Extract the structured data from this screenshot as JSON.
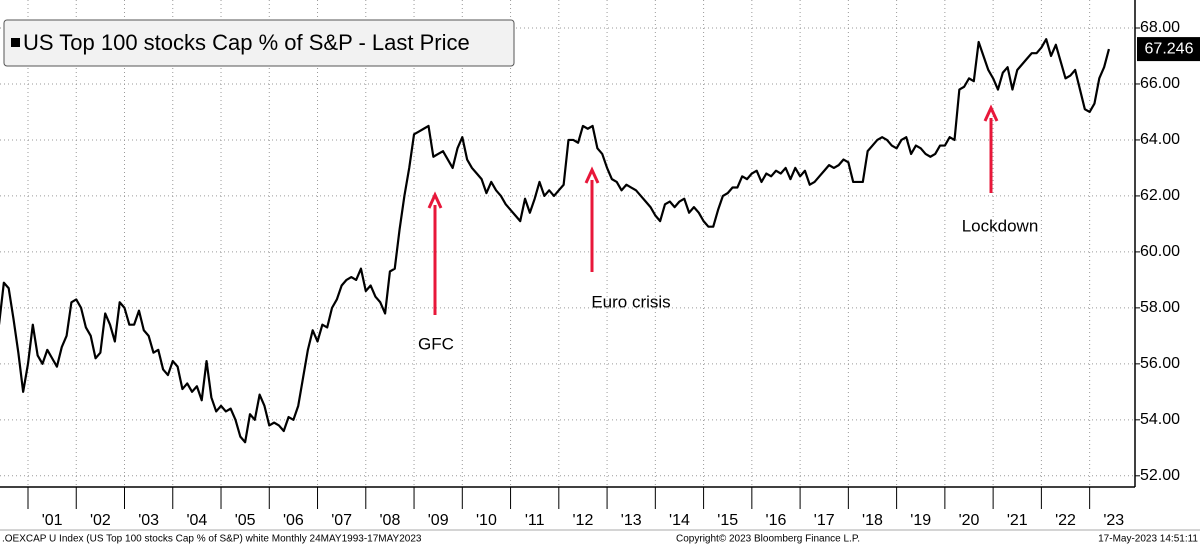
{
  "chart_data": {
    "type": "line",
    "series": [
      {
        "name": "US Top 100 stocks Cap % of S&P - Last Price",
        "color": "#000000",
        "values": [
          57.4,
          58.9,
          58.7,
          57.6,
          56.4,
          55.0,
          56.0,
          57.4,
          56.3,
          56.0,
          56.5,
          56.2,
          55.9,
          56.6,
          57.0,
          58.2,
          58.3,
          58.0,
          57.3,
          57.0,
          56.2,
          56.4,
          57.8,
          57.4,
          56.8,
          58.2,
          58.0,
          57.4,
          57.4,
          57.9,
          57.2,
          57.0,
          56.4,
          56.5,
          55.8,
          55.6,
          56.1,
          55.9,
          55.1,
          55.3,
          55.0,
          55.2,
          54.7,
          56.1,
          54.8,
          54.3,
          54.5,
          54.3,
          54.4,
          54.0,
          53.4,
          53.2,
          54.2,
          54.0,
          54.9,
          54.5,
          53.8,
          53.9,
          53.8,
          53.6,
          54.1,
          54.0,
          54.5,
          55.5,
          56.5,
          57.2,
          56.8,
          57.4,
          57.3,
          58.0,
          58.3,
          58.8,
          59.0,
          59.1,
          59.0,
          59.4,
          58.6,
          58.8,
          58.4,
          58.2,
          57.8,
          59.3,
          59.4,
          60.8,
          62.0,
          63.0,
          64.2,
          64.3,
          64.4,
          64.5,
          63.4,
          63.5,
          63.6,
          63.3,
          63.0,
          63.7,
          64.1,
          63.3,
          63.0,
          62.8,
          62.6,
          62.1,
          62.5,
          62.2,
          62.0,
          61.7,
          61.5,
          61.3,
          61.1,
          61.9,
          61.4,
          61.9,
          62.5,
          62.0,
          62.2,
          62.0,
          62.2,
          62.4,
          64.0,
          64.0,
          63.9,
          64.5,
          64.4,
          64.5,
          63.7,
          63.5,
          63.0,
          62.6,
          62.5,
          62.2,
          62.4,
          62.3,
          62.2,
          62.0,
          61.8,
          61.6,
          61.3,
          61.1,
          61.7,
          61.8,
          61.6,
          61.8,
          61.9,
          61.4,
          61.6,
          61.4,
          61.1,
          60.9,
          60.9,
          61.5,
          62.0,
          62.1,
          62.3,
          62.3,
          62.7,
          62.6,
          62.8,
          62.9,
          62.5,
          62.8,
          62.7,
          62.9,
          62.8,
          63.0,
          62.6,
          63.0,
          62.7,
          62.9,
          62.4,
          62.5,
          62.7,
          62.9,
          63.1,
          63.0,
          63.1,
          63.3,
          63.2,
          62.5,
          62.5,
          62.5,
          63.6,
          63.8,
          64.0,
          64.1,
          64.0,
          63.8,
          63.7,
          64.0,
          64.1,
          63.5,
          63.8,
          63.7,
          63.5,
          63.4,
          63.5,
          63.8,
          63.8,
          64.1,
          64.0,
          65.8,
          65.9,
          66.2,
          66.1,
          67.5,
          67.0,
          66.5,
          66.2,
          65.8,
          66.4,
          66.6,
          65.8,
          66.5,
          66.7,
          66.9,
          67.1,
          67.1,
          67.3,
          67.6,
          67.0,
          67.4,
          66.8,
          66.2,
          66.3,
          66.5,
          65.8,
          65.1,
          65.0,
          65.3,
          66.2,
          66.6,
          67.246
        ]
      }
    ],
    "x": [
      2000.4,
      2000.5,
      2000.6,
      2000.7,
      2000.8,
      2000.9,
      2001,
      2001.1,
      2001.2,
      2001.3,
      2001.4,
      2001.5,
      2001.6,
      2001.7,
      2001.8,
      2001.9,
      2002,
      2002.1,
      2002.2,
      2002.3,
      2002.4,
      2002.5,
      2002.6,
      2002.7,
      2002.8,
      2002.9,
      2003,
      2003.1,
      2003.2,
      2003.3,
      2003.4,
      2003.5,
      2003.6,
      2003.7,
      2003.8,
      2003.9,
      2004,
      2004.1,
      2004.2,
      2004.3,
      2004.4,
      2004.5,
      2004.6,
      2004.7,
      2004.8,
      2004.9,
      2005,
      2005.1,
      2005.2,
      2005.3,
      2005.4,
      2005.5,
      2005.6,
      2005.7,
      2005.8,
      2005.9,
      2006,
      2006.1,
      2006.2,
      2006.3,
      2006.4,
      2006.5,
      2006.6,
      2006.7,
      2006.8,
      2006.9,
      2007,
      2007.1,
      2007.2,
      2007.3,
      2007.4,
      2007.5,
      2007.6,
      2007.7,
      2007.8,
      2007.9,
      2008,
      2008.1,
      2008.2,
      2008.3,
      2008.4,
      2008.5,
      2008.6,
      2008.7,
      2008.8,
      2008.9,
      2009,
      2009.1,
      2009.2,
      2009.3,
      2009.4,
      2009.5,
      2009.6,
      2009.7,
      2009.8,
      2009.9,
      2010,
      2010.1,
      2010.2,
      2010.3,
      2010.4,
      2010.5,
      2010.6,
      2010.7,
      2010.8,
      2010.9,
      2011,
      2011.1,
      2011.2,
      2011.3,
      2011.4,
      2011.5,
      2011.6,
      2011.7,
      2011.8,
      2011.9,
      2012,
      2012.1,
      2012.2,
      2012.3,
      2012.4,
      2012.5,
      2012.6,
      2012.7,
      2012.8,
      2012.9,
      2013,
      2013.1,
      2013.2,
      2013.3,
      2013.4,
      2013.5,
      2013.6,
      2013.7,
      2013.8,
      2013.9,
      2014,
      2014.1,
      2014.2,
      2014.3,
      2014.4,
      2014.5,
      2014.6,
      2014.7,
      2014.8,
      2014.9,
      2015,
      2015.1,
      2015.2,
      2015.3,
      2015.4,
      2015.5,
      2015.6,
      2015.7,
      2015.8,
      2015.9,
      2016,
      2016.1,
      2016.2,
      2016.3,
      2016.4,
      2016.5,
      2016.6,
      2016.7,
      2016.8,
      2016.9,
      2017,
      2017.1,
      2017.2,
      2017.3,
      2017.4,
      2017.5,
      2017.6,
      2017.7,
      2017.8,
      2017.9,
      2018,
      2018.1,
      2018.2,
      2018.3,
      2018.4,
      2018.5,
      2018.6,
      2018.7,
      2018.8,
      2018.9,
      2019,
      2019.1,
      2019.2,
      2019.3,
      2019.4,
      2019.5,
      2019.6,
      2019.7,
      2019.8,
      2019.9,
      2020,
      2020.1,
      2020.2,
      2020.3,
      2020.4,
      2020.5,
      2020.6,
      2020.7,
      2020.8,
      2020.9,
      2021,
      2021.1,
      2021.2,
      2021.3,
      2021.4,
      2021.5,
      2021.6,
      2021.7,
      2021.8,
      2021.9,
      2022,
      2022.1,
      2022.2,
      2022.3,
      2022.4,
      2022.5,
      2022.6,
      2022.7,
      2022.8,
      2022.9,
      2023,
      2023.1,
      2023.2,
      2023.3,
      2023.4
    ],
    "xlim": [
      2000.42,
      2023.94
    ],
    "xticks": [
      {
        "value": 2001.5,
        "label": "'01"
      },
      {
        "value": 2002.5,
        "label": "'02"
      },
      {
        "value": 2003.5,
        "label": "'03"
      },
      {
        "value": 2004.5,
        "label": "'04"
      },
      {
        "value": 2005.5,
        "label": "'05"
      },
      {
        "value": 2006.5,
        "label": "'06"
      },
      {
        "value": 2007.5,
        "label": "'07"
      },
      {
        "value": 2008.5,
        "label": "'08"
      },
      {
        "value": 2009.5,
        "label": "'09"
      },
      {
        "value": 2010.5,
        "label": "'10"
      },
      {
        "value": 2011.5,
        "label": "'11"
      },
      {
        "value": 2012.5,
        "label": "'12"
      },
      {
        "value": 2013.5,
        "label": "'13"
      },
      {
        "value": 2014.5,
        "label": "'14"
      },
      {
        "value": 2015.5,
        "label": "'15"
      },
      {
        "value": 2016.5,
        "label": "'16"
      },
      {
        "value": 2017.5,
        "label": "'17"
      },
      {
        "value": 2018.5,
        "label": "'18"
      },
      {
        "value": 2019.5,
        "label": "'19"
      },
      {
        "value": 2020.5,
        "label": "'20"
      },
      {
        "value": 2021.5,
        "label": "'21"
      },
      {
        "value": 2022.5,
        "label": "'22"
      },
      {
        "value": 2023.5,
        "label": "'23"
      }
    ],
    "ylim": [
      51.6,
      69
    ],
    "yticks": [
      {
        "value": 52,
        "label": "52.00"
      },
      {
        "value": 54,
        "label": "54.00"
      },
      {
        "value": 56,
        "label": "56.00"
      },
      {
        "value": 58,
        "label": "58.00"
      },
      {
        "value": 60,
        "label": "60.00"
      },
      {
        "value": 62,
        "label": "62.00"
      },
      {
        "value": 64,
        "label": "64.00"
      },
      {
        "value": 66,
        "label": "66.00"
      },
      {
        "value": 68,
        "label": "68.00"
      }
    ],
    "grid": true,
    "annotations": [
      "GFC",
      "Euro crisis",
      "Lockdown"
    ],
    "annotation_color": "#e8173a",
    "footer": {
      "left": ".OEXCAP U Index (US Top 100 stocks Cap % of S&P) white  Monthly 24MAY1993-17MAY2023",
      "center": "Copyright© 2023 Bloomberg Finance L.P.",
      "right": "17-May-2023 14:51:11"
    }
  }
}
